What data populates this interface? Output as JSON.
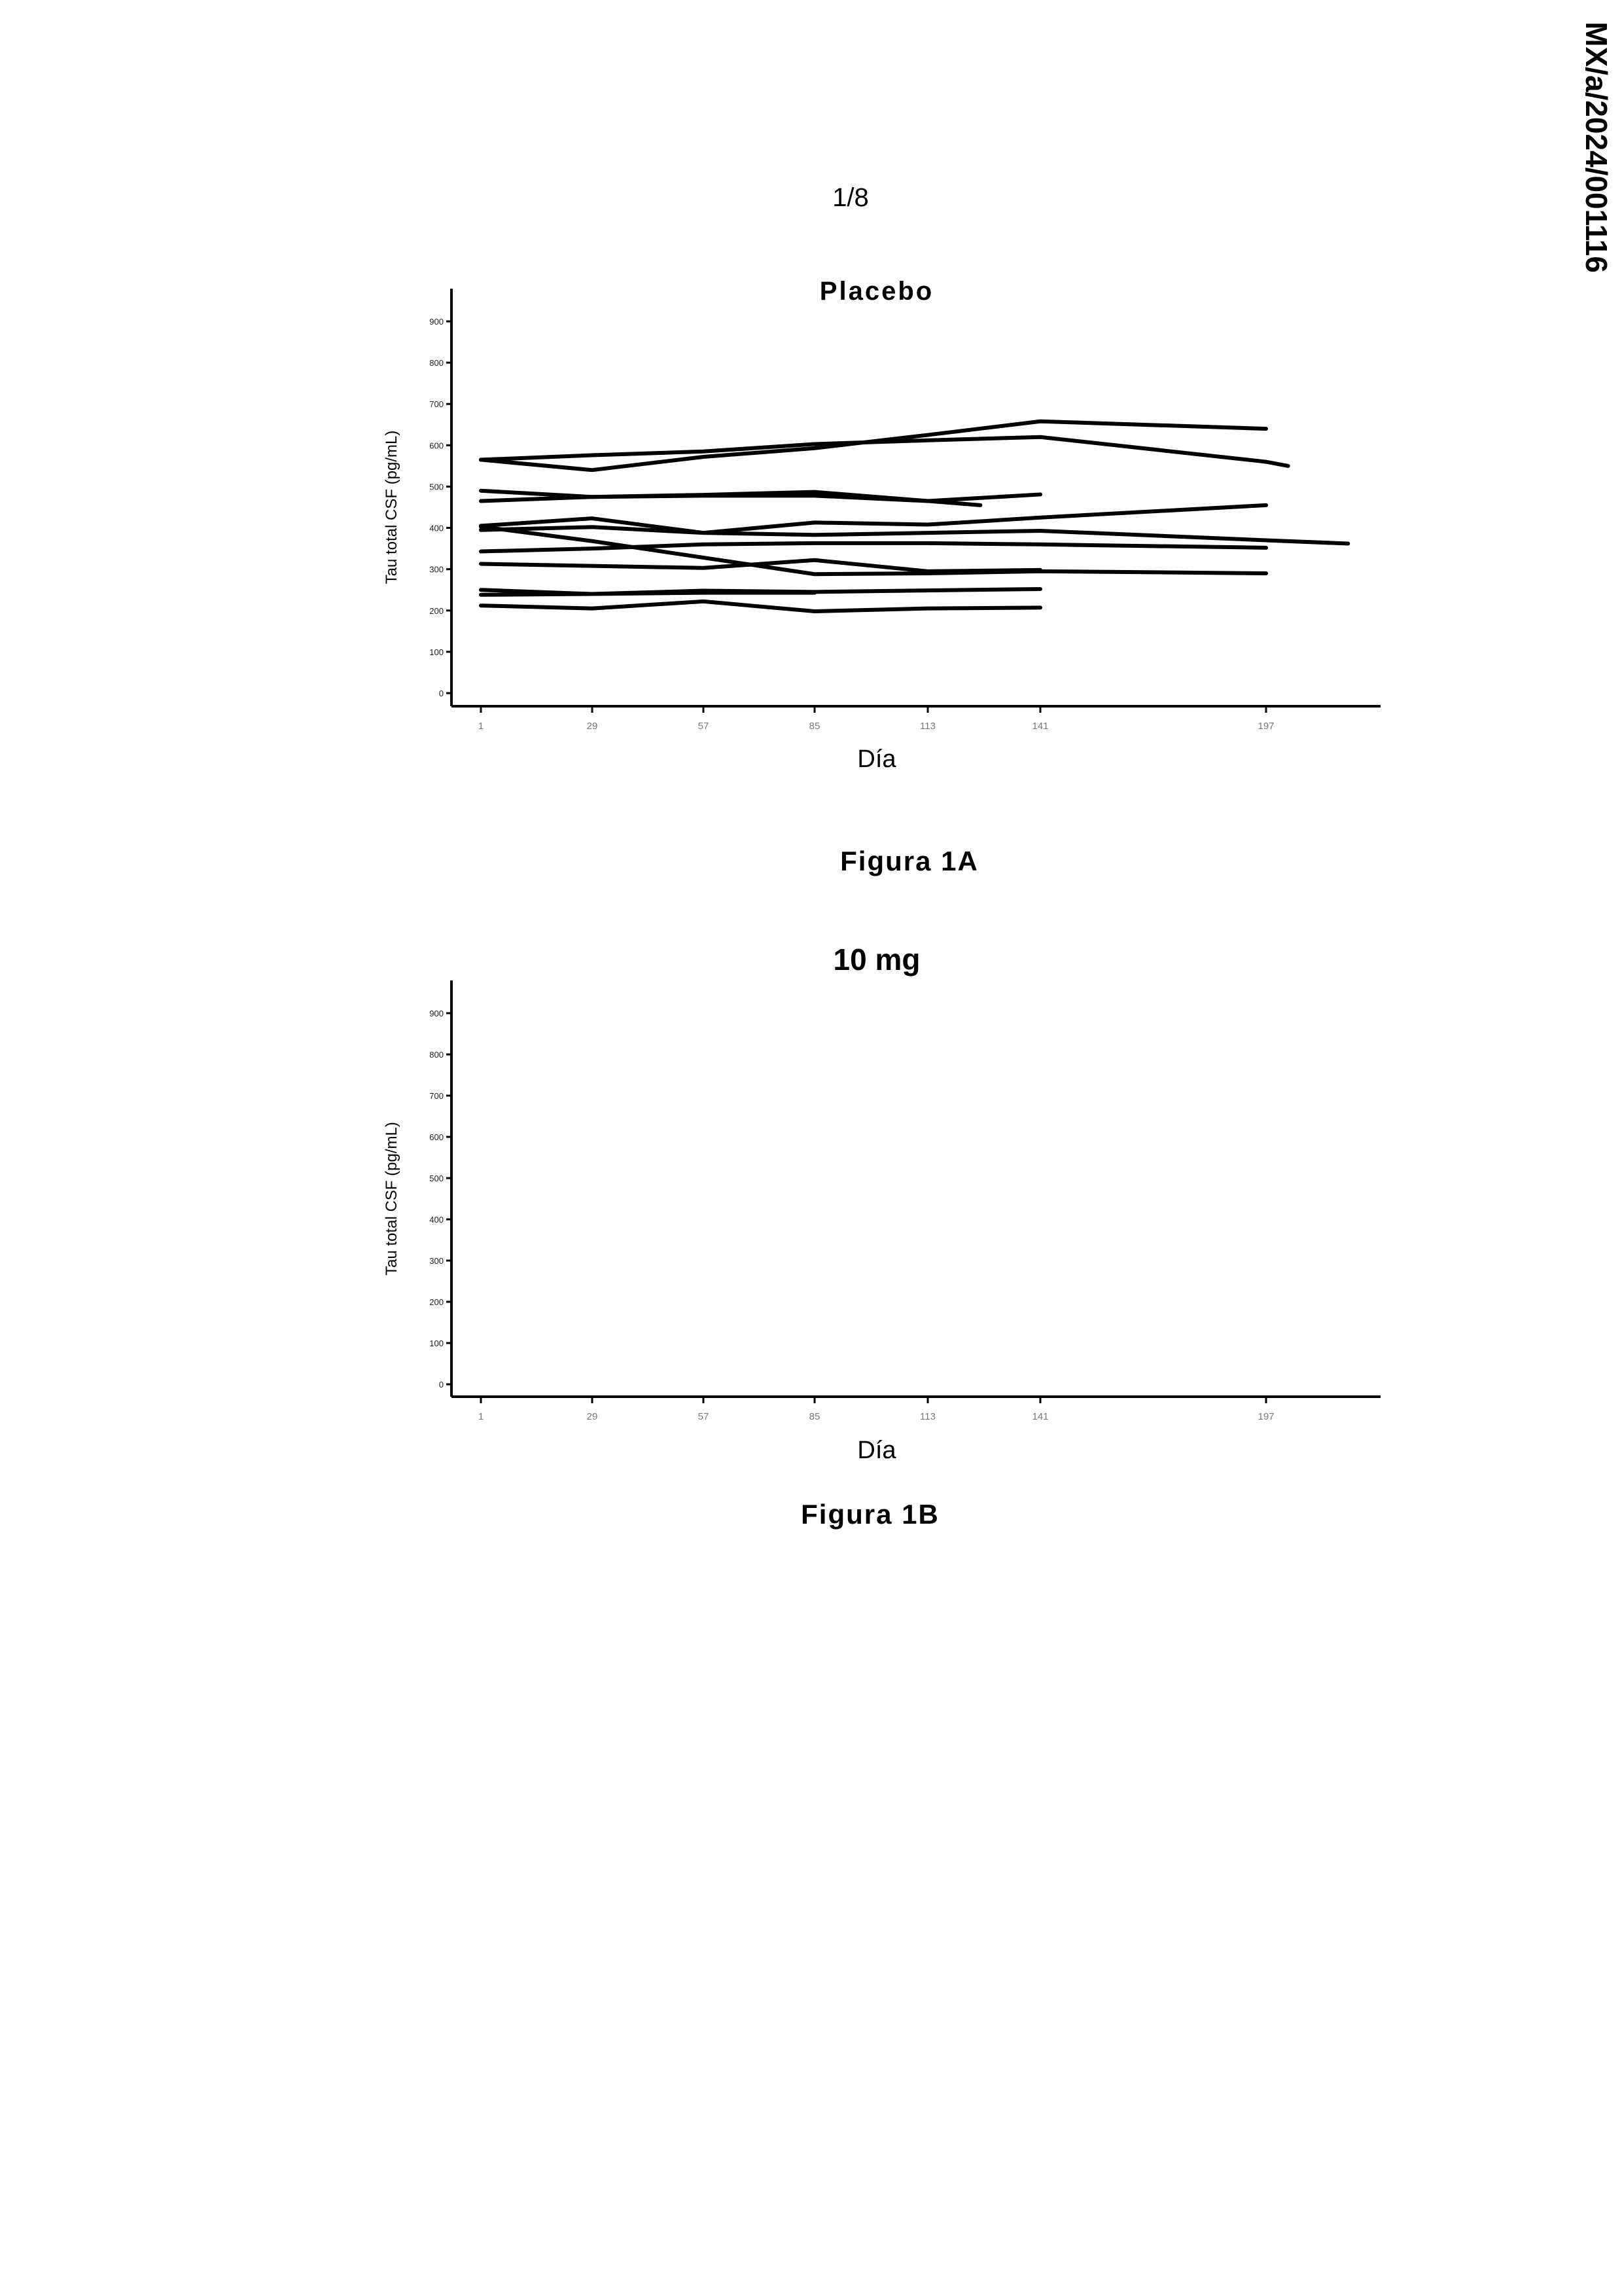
{
  "page_number": "1/8",
  "watermark": "MX/a/2024/001116",
  "figures": [
    {
      "caption": "Figura 1A"
    },
    {
      "caption": "Figura 1B"
    }
  ],
  "chart_data": [
    {
      "type": "line",
      "title": "Placebo",
      "xlabel": "Día",
      "ylabel": "Tau total CSF  (pg/mL)",
      "x_ticks": [
        1,
        29,
        57,
        85,
        113,
        141,
        197
      ],
      "x_tick_labels": [
        "1",
        "29",
        "57",
        "85",
        "113",
        "141",
        "197"
      ],
      "xlim": [
        1,
        225
      ],
      "ylim": [
        0,
        900
      ],
      "y_ticks": [
        0,
        100,
        200,
        300,
        400,
        500,
        600,
        700,
        800,
        900
      ],
      "grid": false,
      "line_color": "#000000",
      "series": [
        {
          "x": [
            1,
            29,
            57,
            85,
            113,
            141,
            197
          ],
          "y": [
            565,
            540,
            572,
            593,
            625,
            658,
            640
          ]
        },
        {
          "x": [
            1,
            29,
            57,
            85,
            113,
            141,
            197,
            203
          ],
          "y": [
            565,
            576,
            585,
            603,
            612,
            620,
            560,
            550
          ]
        },
        {
          "x": [
            1,
            29,
            57,
            85,
            113,
            141
          ],
          "y": [
            490,
            475,
            478,
            478,
            465,
            481
          ]
        },
        {
          "x": [
            1,
            29,
            57,
            85,
            126
          ],
          "y": [
            465,
            475,
            480,
            487,
            455
          ]
        },
        {
          "x": [
            1,
            29,
            57,
            85,
            113,
            141,
            197
          ],
          "y": [
            405,
            423,
            388,
            413,
            408,
            425,
            455
          ]
        },
        {
          "x": [
            1,
            29,
            57,
            85,
            113,
            141,
            197,
            218
          ],
          "y": [
            395,
            402,
            388,
            383,
            388,
            393,
            370,
            362
          ]
        },
        {
          "x": [
            1,
            29,
            57,
            85,
            113,
            141,
            197
          ],
          "y": [
            403,
            368,
            328,
            288,
            290,
            295,
            290
          ]
        },
        {
          "x": [
            1,
            29,
            57,
            85,
            113,
            141,
            197
          ],
          "y": [
            343,
            350,
            360,
            363,
            363,
            360,
            352
          ]
        },
        {
          "x": [
            1,
            29,
            57,
            85,
            113,
            141
          ],
          "y": [
            313,
            308,
            303,
            322,
            295,
            298
          ]
        },
        {
          "x": [
            1,
            29,
            57,
            85,
            141
          ],
          "y": [
            250,
            240,
            248,
            245,
            252
          ]
        },
        {
          "x": [
            1,
            29,
            57,
            85
          ],
          "y": [
            238,
            240,
            243,
            243
          ]
        },
        {
          "x": [
            1,
            29,
            57,
            85,
            113,
            141
          ],
          "y": [
            212,
            205,
            222,
            198,
            205,
            207
          ]
        }
      ]
    },
    {
      "type": "line",
      "title": "10 mg",
      "xlabel": "Día",
      "ylabel": "Tau total CSF  (pg/mL)",
      "x_ticks": [
        1,
        29,
        57,
        85,
        113,
        141,
        197
      ],
      "x_tick_labels": [
        "1",
        "29",
        "57",
        "85",
        "113",
        "141",
        "197"
      ],
      "xlim": [
        1,
        225
      ],
      "ylim": [
        0,
        900
      ],
      "y_ticks": [
        0,
        100,
        200,
        300,
        400,
        500,
        600,
        700,
        800,
        900
      ],
      "grid": false,
      "line_color": "#000000",
      "series": []
    }
  ]
}
